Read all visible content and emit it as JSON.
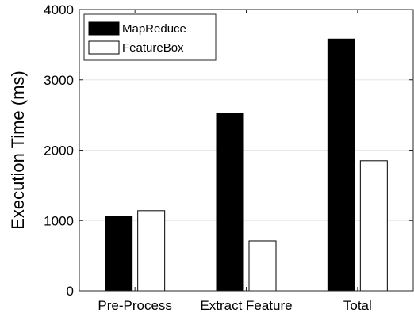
{
  "chart_data": {
    "type": "bar",
    "title": "",
    "xlabel": "",
    "ylabel": "Execution Time (ms)",
    "ylim": [
      0,
      4000
    ],
    "yticks": [
      0,
      1000,
      2000,
      3000,
      4000
    ],
    "grid": true,
    "legend_position": "top-left",
    "categories": [
      "Pre-Process",
      "Extract Feature",
      "Total"
    ],
    "series": [
      {
        "name": "MapReduce",
        "values": [
          1060,
          2520,
          3580
        ],
        "color": "#000000"
      },
      {
        "name": "FeatureBox",
        "values": [
          1140,
          710,
          1850
        ],
        "color": "#ffffff"
      }
    ]
  }
}
